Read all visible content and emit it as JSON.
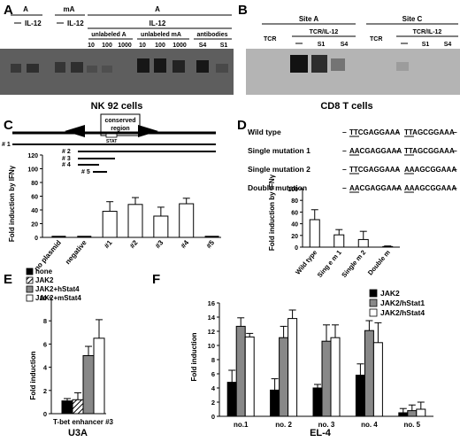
{
  "panels": {
    "A": {
      "letter": "A",
      "header_A1": "A",
      "header_mA": "mA",
      "header_A2": "A",
      "lane_IL12_1": "IL-12",
      "lane_IL12_2": "IL-12",
      "header_IL12": "IL-12",
      "sub_unlabeled_A": "unlabeled A",
      "sub_unlabeled_mA": "unlabeled mA",
      "sub_antibodies": "antibodies",
      "lanes": [
        "10",
        "100",
        "1000",
        "10",
        "100",
        "1000",
        "S4",
        "S1"
      ],
      "caption": "NK 92 cells"
    },
    "B": {
      "letter": "B",
      "site_a": "Site A",
      "site_c": "Site C",
      "tcr1": "TCR",
      "tcr_il12_1": "TCR/IL-12",
      "tcr2": "TCR",
      "tcr_il12_2": "TCR/IL-12",
      "lanesA": [
        "S1",
        "S4"
      ],
      "lanesC": [
        "S1",
        "S4"
      ],
      "caption": "CD8 T cells"
    },
    "C": {
      "letter": "C",
      "conserved": "conserved",
      "region": "region",
      "stat": "STAT",
      "constructs": [
        "# 1",
        "# 2",
        "# 3",
        "# 4",
        "# 5"
      ],
      "ylabel": "Fold induction by IFNγ"
    },
    "D": {
      "letter": "D",
      "rows": [
        {
          "label": "Wild type",
          "s1": "TTCGAGGAAA",
          "s2": "TTAGCGGAAA"
        },
        {
          "label": "Single mutation 1",
          "s1": "AACGAGGAAA",
          "s2": "TTAGCGGAAA"
        },
        {
          "label": "Single mutation 2",
          "s1": "TTCGAGGAAA",
          "s2": "AAAGCGGAAA"
        },
        {
          "label": "Double mutation",
          "s1": "AACGAGGAAA",
          "s2": "AAAGCGGAAA"
        }
      ],
      "ylabel": "Fold induction by IFNγ"
    },
    "E": {
      "letter": "E",
      "ylabel": "Fold induction",
      "caption": "U3A"
    },
    "F": {
      "letter": "F",
      "ylabel": "Fold induction",
      "caption": "EL-4"
    }
  },
  "chart_data": [
    {
      "id": "C",
      "type": "bar",
      "categories": [
        "no plasmid",
        "negative",
        "#1",
        "#2",
        "#3",
        "#4",
        "#5"
      ],
      "values": [
        0,
        0,
        38,
        48,
        31,
        49,
        0
      ],
      "errors": [
        0,
        0,
        14,
        10,
        13,
        8,
        0
      ],
      "ylabel": "Fold induction by IFNγ",
      "ylim": [
        0,
        120
      ],
      "yticks": [
        0,
        20,
        40,
        60,
        80,
        100,
        120
      ]
    },
    {
      "id": "D",
      "type": "bar",
      "categories": [
        "Wild type",
        "Sing e m 1",
        "Single m 2",
        "Double m"
      ],
      "values": [
        47,
        21,
        13,
        1
      ],
      "errors": [
        17,
        9,
        14,
        1
      ],
      "ylabel": "Fold induction by IFNγ",
      "ylim": [
        0,
        100
      ],
      "yticks": [
        0,
        20,
        40,
        60,
        80,
        100
      ]
    },
    {
      "id": "E",
      "type": "bar",
      "categories": [
        "T-bet enhancer #3"
      ],
      "series": [
        {
          "name": "none",
          "values": [
            1.1
          ],
          "errors": [
            0.2
          ],
          "color": "#000000"
        },
        {
          "name": "JAK2",
          "values": [
            1.2
          ],
          "errors": [
            0.6
          ],
          "color": "hatch"
        },
        {
          "name": "JAK2+hStat4",
          "values": [
            5.0
          ],
          "errors": [
            0.8
          ],
          "color": "#888888"
        },
        {
          "name": "JAK2+mStat4",
          "values": [
            6.5
          ],
          "errors": [
            1.6
          ],
          "color": "#ffffff"
        }
      ],
      "ylabel": "Fold induction",
      "ylim": [
        0,
        10
      ],
      "yticks": [
        0,
        2,
        4,
        6,
        8,
        10
      ],
      "legend": "top-left"
    },
    {
      "id": "F",
      "type": "bar",
      "categories": [
        "no.1",
        "no. 2",
        "no. 3",
        "no. 4",
        "no. 5"
      ],
      "series": [
        {
          "name": "JAK2",
          "values": [
            4.8,
            3.7,
            4.0,
            5.8,
            0.5
          ],
          "errors": [
            1.7,
            1.6,
            0.5,
            1.6,
            0.6
          ],
          "color": "#000000"
        },
        {
          "name": "JAK2/hStat1",
          "values": [
            12.7,
            11.1,
            10.6,
            12.1,
            0.8
          ],
          "errors": [
            1.2,
            1.6,
            2.3,
            1.4,
            0.8
          ],
          "color": "#888888"
        },
        {
          "name": "JAK2/hStat4",
          "values": [
            11.2,
            13.8,
            11.1,
            10.4,
            1.0
          ],
          "errors": [
            0.5,
            1.2,
            1.8,
            2.8,
            1.0
          ],
          "color": "#ffffff"
        }
      ],
      "ylabel": "Fold induction",
      "ylim": [
        0,
        16
      ],
      "yticks": [
        0,
        2,
        4,
        6,
        8,
        10,
        12,
        14,
        16
      ],
      "legend": "top-right"
    }
  ]
}
